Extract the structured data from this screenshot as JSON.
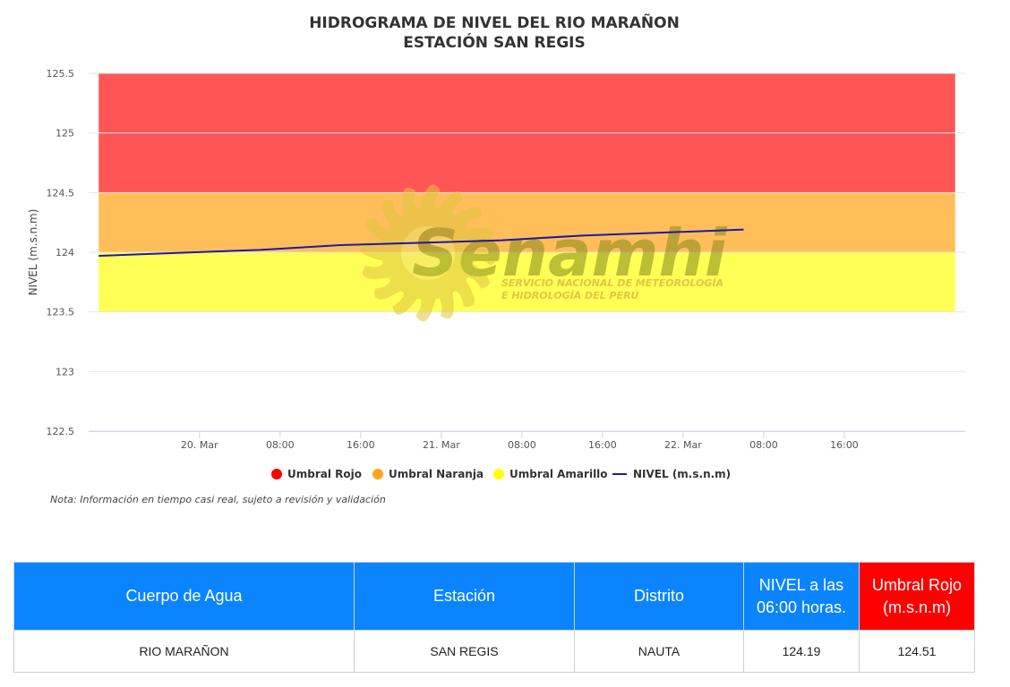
{
  "chart_data": {
    "type": "line",
    "title": "HIDROGRAMA DE NIVEL DEL RIO MARAÑON",
    "subtitle": "ESTACIÓN SAN REGIS",
    "ylabel": "NIVEL (m.s.n.m)",
    "xlabel": "",
    "ylim": [
      122.5,
      125.5
    ],
    "y_ticks": [
      122.5,
      123,
      123.5,
      124,
      124.5,
      125,
      125.5
    ],
    "y_tick_labels": [
      "122.5",
      "123",
      "123.5",
      "124",
      "124.5",
      "125",
      "125.5"
    ],
    "xlim": [
      "2025-03-19T13:00",
      "2025-03-23T04:00"
    ],
    "x_ticks": [
      "2025-03-20T00:00",
      "2025-03-20T08:00",
      "2025-03-20T16:00",
      "2025-03-21T00:00",
      "2025-03-21T08:00",
      "2025-03-21T16:00",
      "2025-03-22T00:00",
      "2025-03-22T08:00",
      "2025-03-22T16:00"
    ],
    "x_tick_labels": [
      "20. Mar",
      "08:00",
      "16:00",
      "21. Mar",
      "08:00",
      "16:00",
      "22. Mar",
      "08:00",
      "16:00"
    ],
    "bands": [
      {
        "name": "Umbral Rojo",
        "from": 124.5,
        "to": 125.5,
        "x_from": "2025-03-19T14:00",
        "x_to": "2025-03-23T03:00",
        "color": "#ff5555"
      },
      {
        "name": "Umbral Naranja",
        "from": 124.0,
        "to": 124.5,
        "x_from": "2025-03-19T14:00",
        "x_to": "2025-03-23T03:00",
        "color": "#ffbe5a"
      },
      {
        "name": "Umbral Amarillo",
        "from": 123.5,
        "to": 124.0,
        "x_from": "2025-03-19T14:00",
        "x_to": "2025-03-23T03:00",
        "color": "#ffff55"
      }
    ],
    "series": [
      {
        "name": "NIVEL (m.s.n.m)",
        "color": "#1a1aa6",
        "x": [
          "2025-03-19T14:00",
          "2025-03-20T06:00",
          "2025-03-20T14:00",
          "2025-03-21T06:00",
          "2025-03-21T14:00",
          "2025-03-22T06:00"
        ],
        "y": [
          123.97,
          124.02,
          124.06,
          124.1,
          124.14,
          124.19
        ]
      }
    ],
    "legend": [
      {
        "label": "Umbral Rojo",
        "color": "#ff0000",
        "kind": "dot"
      },
      {
        "label": "Umbral Naranja",
        "color": "#ffa41c",
        "kind": "dot"
      },
      {
        "label": "Umbral Amarillo",
        "color": "#ffff00",
        "kind": "dot"
      },
      {
        "label": "NIVEL (m.s.n.m)",
        "color": "#1a1aa6",
        "kind": "line"
      }
    ],
    "legend_position": "bottom-center",
    "grid": true
  },
  "watermark": {
    "brand": "Senamhi",
    "line1": "SERVICIO NACIONAL DE METEOROLOGÍA",
    "line2": "E HIDROLOGÍA DEL PERÚ"
  },
  "note": "Nota: Información en tiempo casi real, sujeto a revisión y validación",
  "table": {
    "headers": [
      "Cuerpo de Agua",
      "Estación",
      "Distrito",
      "NIVEL a las 06:00 horas.",
      "Umbral Rojo (m.s.n.m)"
    ],
    "row": [
      "RIO MARAÑON",
      "SAN REGIS",
      "NAUTA",
      "124.19",
      "124.51"
    ]
  }
}
